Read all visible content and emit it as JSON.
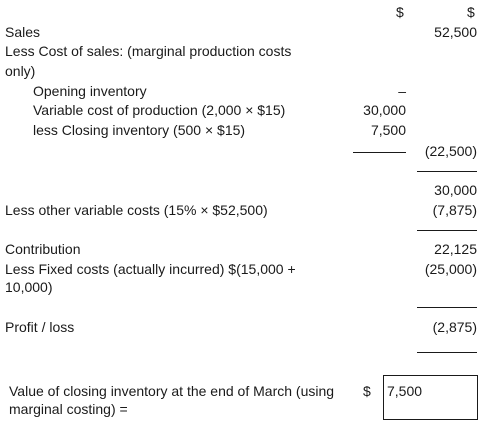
{
  "headers": {
    "col1": "$",
    "col2": "$"
  },
  "rows": {
    "sales": {
      "label": "Sales",
      "col2": "52,500"
    },
    "less_cos_1": {
      "label": "Less Cost of sales: (marginal production costs"
    },
    "less_cos_2": {
      "label": "only)"
    },
    "opening": {
      "label": "Opening inventory",
      "col1": "–"
    },
    "variable": {
      "label": "Variable cost of production (2,000 × $15)",
      "col1": "30,000"
    },
    "closing": {
      "label": "less Closing inventory (500 × $15)",
      "col1": "7,500"
    },
    "cos_total": {
      "col2": "(22,500)"
    },
    "subtotal": {
      "col2": "30,000"
    },
    "other_var": {
      "label": "Less other variable costs (15% × $52,500)",
      "col2": "(7,875)"
    },
    "contribution": {
      "label": "Contribution",
      "col2": "22,125"
    },
    "fixed_1": {
      "label": "Less Fixed costs (actually incurred) $(15,000 +",
      "col2": "(25,000)"
    },
    "fixed_2": {
      "label": "10,000)"
    },
    "profit": {
      "label": "Profit / loss",
      "col2": "(2,875)"
    }
  },
  "footer": {
    "label_1": "Value of closing inventory at the end of March (using",
    "label_2": "marginal costing) =",
    "currency": "$",
    "value": "7,500"
  }
}
